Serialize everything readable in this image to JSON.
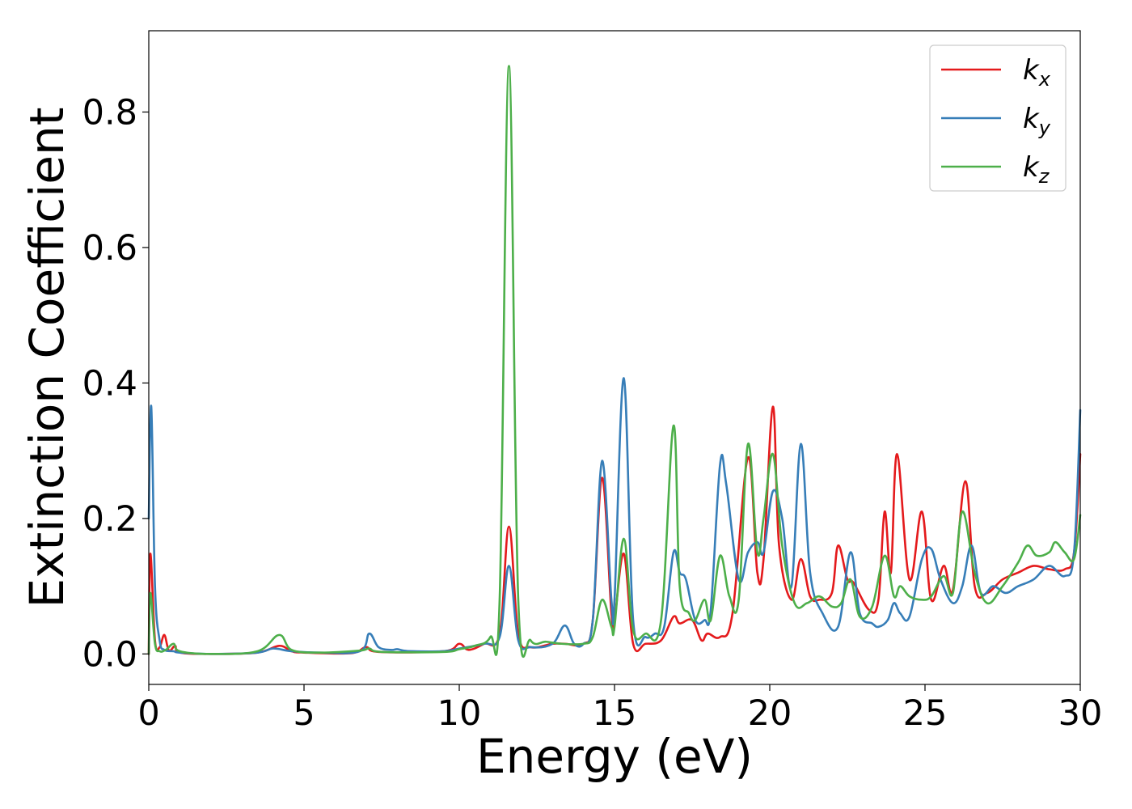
{
  "chart_data": {
    "type": "line",
    "xlabel": "Energy (eV)",
    "ylabel": "Extinction Coefficient",
    "xlim": [
      0,
      30
    ],
    "ylim": [
      -0.045,
      0.92
    ],
    "xticks": [
      0,
      5,
      10,
      15,
      20,
      25,
      30
    ],
    "xtick_labels": [
      "0",
      "5",
      "10",
      "15",
      "20",
      "25",
      "30"
    ],
    "yticks": [
      0.0,
      0.2,
      0.4,
      0.6,
      0.8
    ],
    "ytick_labels": [
      "0.0",
      "0.2",
      "0.4",
      "0.6",
      "0.8"
    ],
    "grid": false,
    "legend_position": "top-right",
    "series": [
      {
        "name": "k_x",
        "label_main": "k",
        "label_sub": "x",
        "color": "#e41a1c",
        "x": [
          0,
          0.05,
          0.2,
          0.35,
          0.5,
          0.65,
          0.85,
          1.0,
          2.0,
          3.5,
          4.2,
          4.6,
          5.0,
          6.5,
          7.0,
          7.4,
          9.5,
          10.0,
          10.3,
          10.8,
          11.3,
          11.6,
          11.9,
          12.3,
          13.0,
          13.4,
          14.0,
          14.3,
          14.6,
          14.9,
          15.0,
          15.3,
          15.6,
          16.0,
          16.5,
          16.9,
          17.1,
          17.5,
          17.8,
          18.0,
          18.4,
          18.8,
          19.3,
          19.6,
          19.8,
          20.1,
          20.3,
          20.7,
          21.0,
          21.3,
          21.6,
          22.0,
          22.2,
          22.5,
          22.7,
          23.2,
          23.5,
          23.7,
          23.9,
          24.1,
          24.5,
          24.9,
          25.2,
          25.6,
          25.9,
          26.3,
          26.6,
          27.0,
          27.5,
          28.0,
          28.5,
          29.0,
          29.5,
          29.8,
          30.0
        ],
        "y": [
          0.0,
          0.148,
          0.02,
          0.01,
          0.028,
          0.005,
          0.012,
          0.002,
          0.0,
          0.002,
          0.012,
          0.004,
          0.002,
          0.001,
          0.01,
          0.003,
          0.004,
          0.015,
          0.006,
          0.015,
          0.03,
          0.188,
          0.03,
          0.01,
          0.015,
          0.015,
          0.015,
          0.05,
          0.26,
          0.06,
          0.05,
          0.148,
          0.015,
          0.015,
          0.02,
          0.055,
          0.045,
          0.05,
          0.02,
          0.03,
          0.025,
          0.06,
          0.29,
          0.12,
          0.14,
          0.365,
          0.16,
          0.08,
          0.14,
          0.085,
          0.08,
          0.09,
          0.16,
          0.11,
          0.105,
          0.065,
          0.08,
          0.21,
          0.12,
          0.295,
          0.11,
          0.21,
          0.08,
          0.13,
          0.095,
          0.255,
          0.1,
          0.09,
          0.11,
          0.12,
          0.13,
          0.125,
          0.125,
          0.15,
          0.295
        ]
      },
      {
        "name": "k_y",
        "label_main": "k",
        "label_sub": "y",
        "color": "#377eb8",
        "x": [
          0,
          0.08,
          0.2,
          0.35,
          0.5,
          0.8,
          1.0,
          2.0,
          3.5,
          4.0,
          4.6,
          5.5,
          6.8,
          7.1,
          7.4,
          7.8,
          8.0,
          8.2,
          8.5,
          9.5,
          10.0,
          10.8,
          11.3,
          11.6,
          11.9,
          12.3,
          13.0,
          13.4,
          13.7,
          14.0,
          14.3,
          14.6,
          14.9,
          15.0,
          15.3,
          15.6,
          16.0,
          16.3,
          16.6,
          16.9,
          17.1,
          17.3,
          17.6,
          17.9,
          18.1,
          18.4,
          18.6,
          19.0,
          19.3,
          19.6,
          19.8,
          20.1,
          20.4,
          20.7,
          21.0,
          21.3,
          21.7,
          22.2,
          22.6,
          22.9,
          23.3,
          23.5,
          23.8,
          24.0,
          24.2,
          24.5,
          24.9,
          25.2,
          25.5,
          25.9,
          26.2,
          26.5,
          26.8,
          27.2,
          27.6,
          28.0,
          28.5,
          29.0,
          29.5,
          29.8,
          30.0
        ],
        "y": [
          0.2,
          0.365,
          0.1,
          0.02,
          0.006,
          0.004,
          0.002,
          0.0,
          0.002,
          0.008,
          0.004,
          0.002,
          0.004,
          0.03,
          0.01,
          0.006,
          0.007,
          0.005,
          0.004,
          0.004,
          0.008,
          0.015,
          0.025,
          0.13,
          0.02,
          0.01,
          0.015,
          0.042,
          0.015,
          0.015,
          0.05,
          0.285,
          0.08,
          0.08,
          0.407,
          0.05,
          0.025,
          0.03,
          0.04,
          0.15,
          0.12,
          0.11,
          0.05,
          0.05,
          0.065,
          0.28,
          0.25,
          0.11,
          0.15,
          0.165,
          0.15,
          0.24,
          0.2,
          0.1,
          0.31,
          0.12,
          0.06,
          0.04,
          0.15,
          0.06,
          0.045,
          0.04,
          0.05,
          0.075,
          0.06,
          0.055,
          0.14,
          0.155,
          0.11,
          0.075,
          0.1,
          0.16,
          0.09,
          0.1,
          0.09,
          0.1,
          0.11,
          0.13,
          0.115,
          0.15,
          0.36
        ]
      },
      {
        "name": "k_z",
        "label_main": "k",
        "label_sub": "z",
        "color": "#4daf4a",
        "x": [
          0,
          0.05,
          0.2,
          0.35,
          0.55,
          0.8,
          1.0,
          2.0,
          3.5,
          4.2,
          4.6,
          5.5,
          6.8,
          7.1,
          7.5,
          9.5,
          10.0,
          10.5,
          11.0,
          11.3,
          11.6,
          11.9,
          12.3,
          12.8,
          13.3,
          14.0,
          14.3,
          14.6,
          14.9,
          15.0,
          15.3,
          15.6,
          16.0,
          16.5,
          16.9,
          17.1,
          17.4,
          17.6,
          17.9,
          18.1,
          18.4,
          18.7,
          19.0,
          19.3,
          19.6,
          19.8,
          20.1,
          20.4,
          20.8,
          21.2,
          21.6,
          22.0,
          22.3,
          22.6,
          22.9,
          23.3,
          23.7,
          24.0,
          24.2,
          24.5,
          24.9,
          25.2,
          25.6,
          25.9,
          26.2,
          26.6,
          27.0,
          27.5,
          28.0,
          28.3,
          28.6,
          29.0,
          29.2,
          29.5,
          29.8,
          30.0
        ],
        "y": [
          0.0,
          0.09,
          0.015,
          0.004,
          0.006,
          0.015,
          0.004,
          0.0,
          0.004,
          0.028,
          0.006,
          0.002,
          0.005,
          0.008,
          0.003,
          0.003,
          0.007,
          0.012,
          0.025,
          0.08,
          0.868,
          0.08,
          0.02,
          0.018,
          0.015,
          0.015,
          0.025,
          0.08,
          0.04,
          0.04,
          0.17,
          0.035,
          0.03,
          0.05,
          0.337,
          0.1,
          0.06,
          0.05,
          0.08,
          0.05,
          0.145,
          0.085,
          0.08,
          0.31,
          0.15,
          0.2,
          0.295,
          0.16,
          0.075,
          0.075,
          0.085,
          0.07,
          0.075,
          0.11,
          0.055,
          0.07,
          0.145,
          0.085,
          0.1,
          0.085,
          0.08,
          0.085,
          0.115,
          0.09,
          0.21,
          0.12,
          0.075,
          0.1,
          0.135,
          0.16,
          0.145,
          0.15,
          0.165,
          0.15,
          0.14,
          0.205
        ]
      }
    ]
  }
}
